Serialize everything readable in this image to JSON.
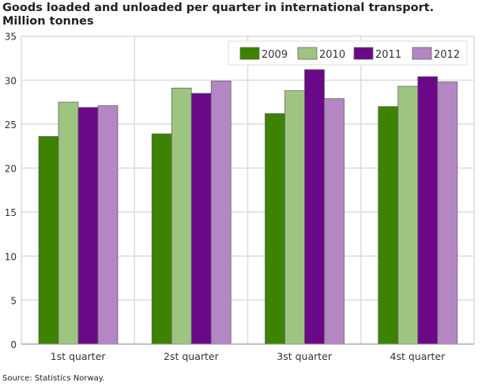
{
  "chart_data": {
    "type": "bar",
    "title": "Goods loaded and unloaded per quarter in international transport.",
    "subtitle": "Million tonnes",
    "categories": [
      "1st quarter",
      "2st quarter",
      "3st quarter",
      "4st quarter"
    ],
    "series": [
      {
        "name": "2009",
        "color": "#3d8200",
        "values": [
          23.6,
          23.9,
          26.2,
          27.0
        ]
      },
      {
        "name": "2010",
        "color": "#9ec482",
        "values": [
          27.5,
          29.1,
          28.8,
          29.3
        ]
      },
      {
        "name": "2011",
        "color": "#6a0888",
        "values": [
          26.9,
          28.5,
          31.2,
          30.4
        ]
      },
      {
        "name": "2012",
        "color": "#b586c4",
        "values": [
          27.1,
          29.9,
          27.9,
          29.8
        ]
      }
    ],
    "ylim": [
      0,
      35
    ],
    "yticks": [
      0,
      5,
      10,
      15,
      20,
      25,
      30,
      35
    ],
    "grid": true,
    "legend": "top-right",
    "xlabel": "",
    "ylabel": ""
  },
  "source": "Source: Statistics Norway."
}
